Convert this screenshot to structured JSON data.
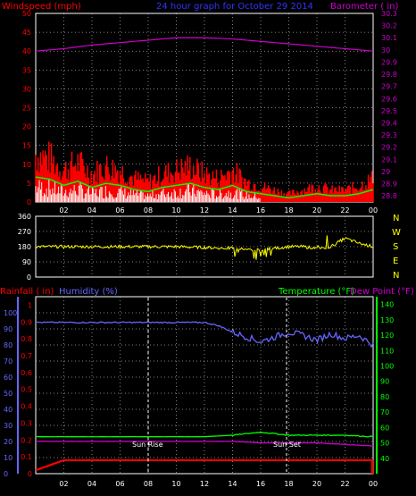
{
  "header": {
    "wind_label": "Windspeed (mph)",
    "title": "24 hour graph for  October 29 2014",
    "baro_label": "Barometer ( in)"
  },
  "compass": [
    "N",
    "W",
    "S",
    "E",
    "N"
  ],
  "lower_header": {
    "rain_label": "Rainfall ( in)",
    "hum_label": "Humidity (%)",
    "temp_label": "Temperature (°F)",
    "dew_label": "Dew Point (°F)"
  },
  "events": {
    "sunrise": "Sun Rise",
    "sunset": "Sun Set"
  },
  "colors": {
    "wind": "#ff0000",
    "gust_fill": "#ff0000",
    "avg": "#00ff00",
    "low": "#ffffff",
    "baro": "#cc00cc",
    "dir": "#ffff00",
    "rain": "#ff0000",
    "hum": "#6666ff",
    "temp": "#00ff00",
    "dew": "#cc00cc",
    "grid": "#ffffff"
  },
  "chart_data": [
    {
      "type": "area",
      "title": "24 hour graph for  October 29 2014",
      "x_ticks": [
        "02",
        "04",
        "06",
        "08",
        "10",
        "12",
        "14",
        "16",
        "18",
        "20",
        "22",
        "00"
      ],
      "xlim": [
        0,
        24
      ],
      "ylabel": "Windspeed (mph)",
      "ylim": [
        0,
        50
      ],
      "y_ticks": [
        0,
        5,
        10,
        15,
        20,
        25,
        30,
        35,
        40,
        45,
        50
      ],
      "y2label": "Barometer ( in)",
      "y2lim": [
        28.75,
        30.3
      ],
      "y2_ticks": [
        "28.8",
        "28.9",
        "29",
        "29.1",
        "29.2",
        "29.3",
        "29.4",
        "29.5",
        "29.6",
        "29.7",
        "29.8",
        "29.9",
        "30",
        "30.1",
        "30.2",
        "30.3"
      ],
      "series": [
        {
          "name": "Windspeed (mph)",
          "x": [
            0,
            1,
            2,
            3,
            4,
            5,
            6,
            7,
            8,
            9,
            10,
            11,
            12,
            13,
            14,
            15,
            16,
            17,
            18,
            19,
            20,
            21,
            22,
            23,
            24
          ],
          "values": [
            12,
            11,
            8,
            10,
            7,
            9,
            8,
            6,
            5,
            7,
            8,
            9,
            7,
            6,
            8,
            5,
            4,
            3,
            2,
            3,
            4,
            3,
            3,
            4,
            6
          ]
        },
        {
          "name": "Barometer ( in)",
          "x": [
            0,
            2,
            4,
            6,
            8,
            10,
            12,
            14,
            16,
            18,
            20,
            22,
            24
          ],
          "values": [
            29.99,
            30.01,
            30.04,
            30.06,
            30.08,
            30.1,
            30.1,
            30.09,
            30.07,
            30.05,
            30.03,
            30.01,
            29.99
          ]
        }
      ]
    },
    {
      "type": "line",
      "x_ticks": [
        "02",
        "04",
        "06",
        "08",
        "10",
        "12",
        "14",
        "16",
        "18",
        "20",
        "22",
        "00"
      ],
      "xlim": [
        0,
        24
      ],
      "ylim": [
        0,
        360
      ],
      "y_ticks": [
        0,
        90,
        180,
        270,
        360
      ],
      "series": [
        {
          "name": "direction",
          "x": [
            0,
            2,
            4,
            6,
            8,
            10,
            12,
            14,
            16,
            18,
            19,
            20,
            21,
            22,
            23,
            24
          ],
          "values": [
            180,
            180,
            180,
            180,
            180,
            180,
            175,
            170,
            160,
            180,
            180,
            170,
            180,
            230,
            200,
            180
          ]
        }
      ]
    },
    {
      "type": "line",
      "x_ticks": [
        "02",
        "04",
        "06",
        "08",
        "10",
        "12",
        "14",
        "16",
        "18",
        "20",
        "22",
        "00"
      ],
      "xlim": [
        0,
        24
      ],
      "ylabel": "Rainfall ( in)",
      "ylim": [
        0,
        1.05
      ],
      "y_ticks": [
        "0",
        "0.1",
        "0.2",
        "0.3",
        "0.4",
        "0.5",
        "0.6",
        "0.7",
        "0.8",
        "0.9",
        "1",
        "1.1"
      ],
      "y_left2": "Humidity (%)",
      "y_left2_ticks": [
        0,
        10,
        20,
        30,
        40,
        50,
        60,
        70,
        80,
        90,
        100
      ],
      "y2label": "Temperature (°F)",
      "y2lim": [
        30,
        145
      ],
      "y2_ticks": [
        40,
        50,
        60,
        70,
        80,
        90,
        100,
        110,
        120,
        130,
        140
      ],
      "series": [
        {
          "name": "Humidity (%)",
          "x": [
            0,
            2,
            4,
            6,
            8,
            10,
            12,
            13,
            14,
            15,
            16,
            17,
            18,
            19,
            20,
            21,
            22,
            23,
            24
          ],
          "values": [
            94,
            94,
            94,
            94,
            94,
            94,
            94,
            92,
            88,
            85,
            82,
            85,
            88,
            86,
            83,
            87,
            84,
            86,
            80
          ]
        },
        {
          "name": "Rainfall ( in)",
          "x": [
            0,
            1,
            2,
            24
          ],
          "values": [
            0.02,
            0.05,
            0.08,
            0.08
          ]
        },
        {
          "name": "Temperature (°F)",
          "x": [
            0,
            4,
            8,
            12,
            14,
            16,
            18,
            20,
            22,
            24
          ],
          "values": [
            54,
            54,
            54,
            54,
            55,
            57,
            55,
            55,
            55,
            54
          ]
        },
        {
          "name": "Dew Point (°F)",
          "x": [
            0,
            4,
            8,
            12,
            14,
            16,
            18,
            20,
            22,
            24
          ],
          "values": [
            51,
            51,
            51,
            51,
            51,
            50,
            50,
            50,
            49,
            48
          ]
        }
      ]
    }
  ]
}
